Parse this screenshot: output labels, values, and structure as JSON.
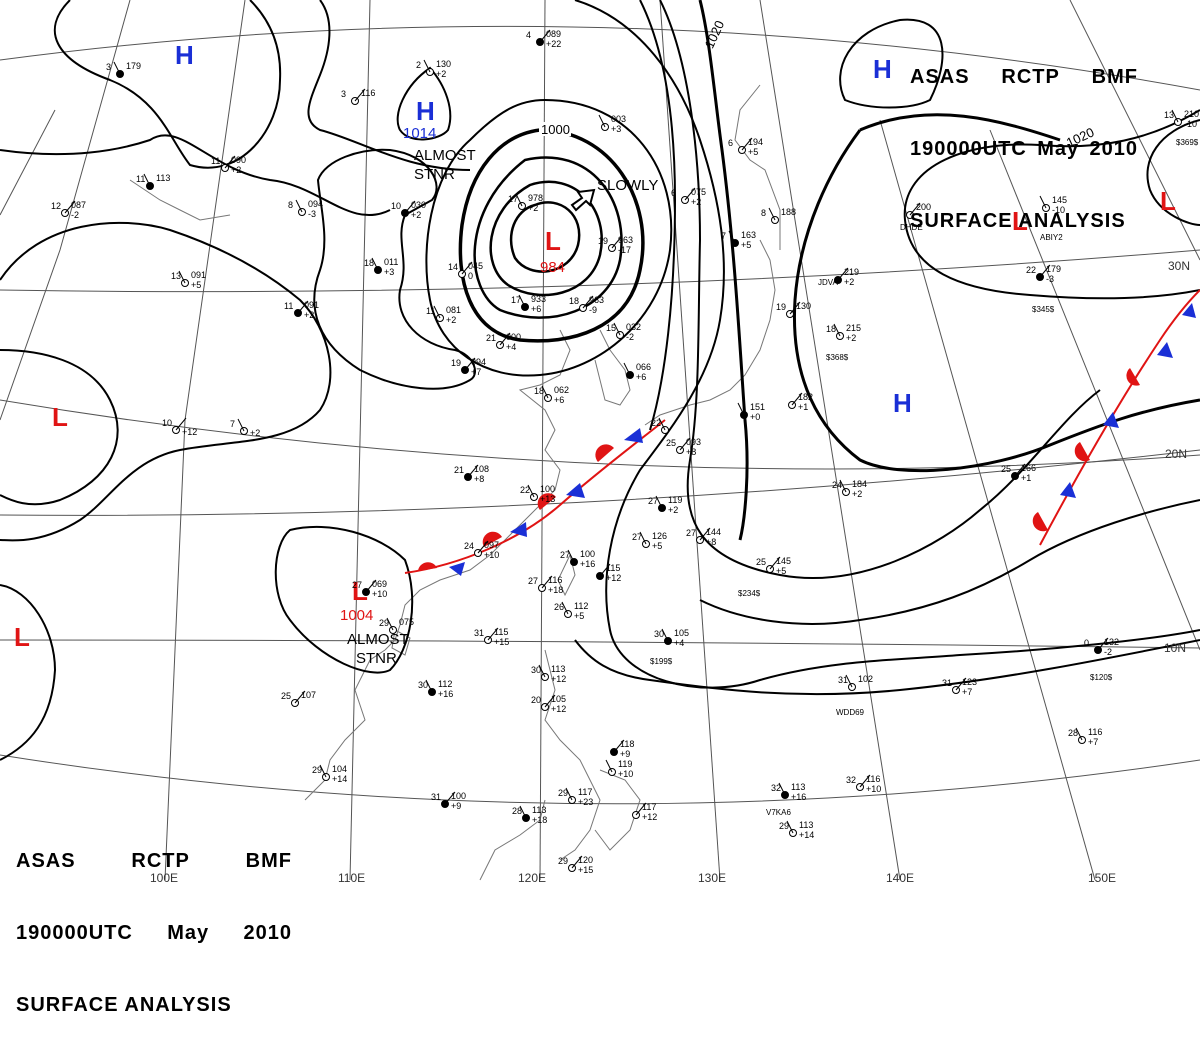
{
  "header": {
    "agency": "ASAS",
    "station": "RCTP",
    "code": "BMF",
    "time": "190000UTC",
    "month": "May",
    "year": "2010",
    "product": "SURFACE ANALYSIS"
  },
  "colors": {
    "high": "#1a2fd6",
    "low": "#e01414",
    "isobar": "#000000",
    "grid": "#555555",
    "coast": "#777777"
  },
  "isobar_labels": [
    "1000",
    "1020",
    "1020",
    "1020"
  ],
  "pressure_centers": [
    {
      "type": "H",
      "value": ""
    },
    {
      "type": "H",
      "value": "1014"
    },
    {
      "type": "H",
      "value": ""
    },
    {
      "type": "H",
      "value": ""
    },
    {
      "type": "L",
      "value": "984"
    },
    {
      "type": "L",
      "value": "1004"
    },
    {
      "type": "L",
      "value": ""
    },
    {
      "type": "L",
      "value": ""
    },
    {
      "type": "L",
      "value": ""
    },
    {
      "type": "L",
      "value": ""
    }
  ],
  "annotations": {
    "almost_stnr_1": "ALMOST STNR",
    "almost_stnr_2": "ALMOST STNR",
    "slowly": "SLOWLY"
  },
  "longitude_labels": [
    "100E",
    "110E",
    "120E",
    "130E",
    "140E",
    "150E"
  ],
  "latitude_labels": [
    "30N",
    "20N",
    "10N"
  ],
  "station_plots": [
    {
      "t": "3",
      "p": "179",
      "d": ""
    },
    {
      "t": "3",
      "p": "116",
      "d": ""
    },
    {
      "t": "2",
      "p": "130",
      "d": "+2"
    },
    {
      "t": "4",
      "p": "089",
      "d": "+22"
    },
    {
      "t": "",
      "p": "003",
      "d": "+3"
    },
    {
      "t": "11",
      "p": "090",
      "d": "+2"
    },
    {
      "t": "11",
      "p": "113",
      "d": ""
    },
    {
      "t": "12",
      "p": "087",
      "d": "-2"
    },
    {
      "t": "8",
      "p": "094",
      "d": "-3"
    },
    {
      "t": "10",
      "p": "030",
      "d": "+2"
    },
    {
      "t": "17",
      "p": "978",
      "d": "+2"
    },
    {
      "t": "19",
      "p": "963",
      "d": "-17"
    },
    {
      "t": "18",
      "p": "011",
      "d": "+3"
    },
    {
      "t": "14",
      "p": "045",
      "d": "0"
    },
    {
      "t": "13",
      "p": "091",
      "d": "+5"
    },
    {
      "t": "11",
      "p": "091",
      "d": "+2"
    },
    {
      "t": "11",
      "p": "081",
      "d": "+2"
    },
    {
      "t": "21",
      "p": "000",
      "d": "+4"
    },
    {
      "t": "17",
      "p": "933",
      "d": "+6"
    },
    {
      "t": "18",
      "p": "963",
      "d": "-9"
    },
    {
      "t": "15",
      "p": "032",
      "d": "-2"
    },
    {
      "t": "19",
      "p": "094",
      "d": "+7"
    },
    {
      "t": "18",
      "p": "062",
      "d": "+6"
    },
    {
      "t": "6",
      "p": "075",
      "d": "+2"
    },
    {
      "t": "7",
      "p": "163",
      "d": "+5"
    },
    {
      "t": "6",
      "p": "194",
      "d": "+5"
    },
    {
      "t": "8",
      "p": "188",
      "d": ""
    },
    {
      "t": "",
      "p": "219",
      "d": "+2"
    },
    {
      "t": "18",
      "p": "215",
      "d": "+2"
    },
    {
      "t": "19",
      "p": "130",
      "d": ""
    },
    {
      "t": "",
      "p": "066",
      "d": "+6"
    },
    {
      "t": "10",
      "p": "",
      "d": "+12"
    },
    {
      "t": "7",
      "p": "",
      "d": "+2"
    },
    {
      "t": "21",
      "p": "108",
      "d": "+8"
    },
    {
      "t": "22",
      "p": "100",
      "d": "+13"
    },
    {
      "t": "24",
      "p": "097",
      "d": "+10"
    },
    {
      "t": "27",
      "p": "100",
      "d": "+16"
    },
    {
      "t": "27",
      "p": "116",
      "d": "+18"
    },
    {
      "t": "26",
      "p": "112",
      "d": "+5"
    },
    {
      "t": "",
      "p": "115",
      "d": "+12"
    },
    {
      "t": "27",
      "p": "126",
      "d": "+5"
    },
    {
      "t": "27",
      "p": "144",
      "d": "+8"
    },
    {
      "t": "27",
      "p": "119",
      "d": "+2"
    },
    {
      "t": "25",
      "p": "093",
      "d": "+8"
    },
    {
      "t": "22",
      "p": "",
      "d": ""
    },
    {
      "t": "27",
      "p": "069",
      "d": "+10"
    },
    {
      "t": "29",
      "p": "075",
      "d": ""
    },
    {
      "t": "31",
      "p": "115",
      "d": "+15"
    },
    {
      "t": "30",
      "p": "112",
      "d": "+16"
    },
    {
      "t": "25",
      "p": "107",
      "d": ""
    },
    {
      "t": "29",
      "p": "104",
      "d": "+14"
    },
    {
      "t": "31",
      "p": "100",
      "d": "+9"
    },
    {
      "t": "30",
      "p": "113",
      "d": "+12"
    },
    {
      "t": "20",
      "p": "105",
      "d": "+12"
    },
    {
      "t": "28",
      "p": "113",
      "d": "+18"
    },
    {
      "t": "29",
      "p": "120",
      "d": "+15"
    },
    {
      "t": "29",
      "p": "117",
      "d": "+23"
    },
    {
      "t": "",
      "p": "118",
      "d": "+9"
    },
    {
      "t": "",
      "p": "119",
      "d": "+10"
    },
    {
      "t": "",
      "p": "117",
      "d": "+12"
    },
    {
      "t": "30",
      "p": "105",
      "d": "+4"
    },
    {
      "t": "25",
      "p": "145",
      "d": "+5"
    },
    {
      "t": "24",
      "p": "184",
      "d": "+2"
    },
    {
      "t": "25",
      "p": "166",
      "d": "+1"
    },
    {
      "t": "31",
      "p": "102",
      "d": ""
    },
    {
      "t": "31",
      "p": "123",
      "d": "+7"
    },
    {
      "t": "32",
      "p": "113",
      "d": "+16"
    },
    {
      "t": "32",
      "p": "116",
      "d": "+10"
    },
    {
      "t": "29",
      "p": "113",
      "d": "+14"
    },
    {
      "t": "0",
      "p": "132",
      "d": "-2"
    },
    {
      "t": "28",
      "p": "116",
      "d": "+7"
    },
    {
      "t": "",
      "p": "182",
      "d": "+1"
    },
    {
      "t": "",
      "p": "151",
      "d": "+0"
    },
    {
      "t": "",
      "p": "200",
      "d": ""
    },
    {
      "t": "",
      "p": "145",
      "d": "-10"
    },
    {
      "t": "22",
      "p": "179",
      "d": "-3"
    },
    {
      "t": "13",
      "p": "210",
      "d": "-10"
    }
  ],
  "ship_ids": [
    "JDVA",
    "DHDE",
    "ABIY2",
    "$345$",
    "$368$",
    "$234$",
    "$199$",
    "$120$",
    "WDD69",
    "V7KA6",
    "$369$"
  ]
}
